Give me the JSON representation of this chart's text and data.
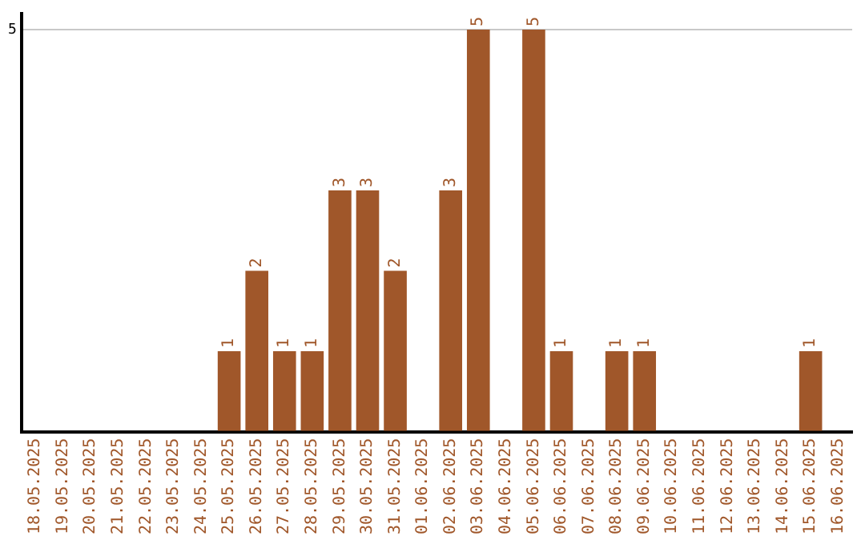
{
  "chart_data": {
    "type": "bar",
    "categories": [
      "18.05.2025",
      "19.05.2025",
      "20.05.2025",
      "21.05.2025",
      "22.05.2025",
      "23.05.2025",
      "24.05.2025",
      "25.05.2025",
      "26.05.2025",
      "27.05.2025",
      "28.05.2025",
      "29.05.2025",
      "30.05.2025",
      "31.05.2025",
      "01.06.2025",
      "02.06.2025",
      "03.06.2025",
      "04.06.2025",
      "05.06.2025",
      "06.06.2025",
      "07.06.2025",
      "08.06.2025",
      "09.06.2025",
      "10.06.2025",
      "11.06.2025",
      "12.06.2025",
      "13.06.2025",
      "14.06.2025",
      "15.06.2025",
      "16.06.2025"
    ],
    "values": [
      0,
      0,
      0,
      0,
      0,
      0,
      0,
      1,
      2,
      1,
      1,
      3,
      3,
      2,
      0,
      3,
      5,
      0,
      5,
      1,
      0,
      1,
      1,
      0,
      0,
      0,
      0,
      0,
      1,
      0
    ],
    "value_labels": [
      null,
      null,
      null,
      null,
      null,
      null,
      null,
      "1",
      "2",
      "1",
      "1",
      "3",
      "3",
      "2",
      null,
      "3",
      "5",
      null,
      "5",
      "1",
      null,
      "1",
      "1",
      null,
      null,
      null,
      null,
      null,
      "1",
      null
    ],
    "color": "#a0572a",
    "ylim": [
      0,
      5.2
    ],
    "yticks": [
      {
        "value": 0,
        "label": null
      },
      5
    ],
    "grid": "y",
    "legend": false
  }
}
